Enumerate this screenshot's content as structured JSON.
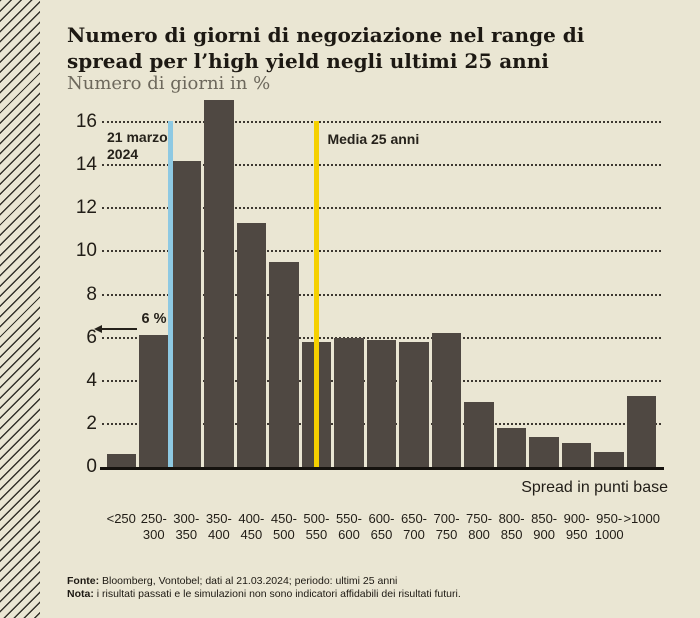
{
  "chart_data": {
    "type": "bar",
    "title": "Numero di giorni di negoziazione nel range di\nspread per l’high yield negli ultimi 25 anni",
    "subtitle": "Numero di giorni in %",
    "xlabel": "Spread in punti base",
    "ylabel": "Numero di giorni in %",
    "ylim": [
      0,
      17.2
    ],
    "yticks": [
      0,
      2,
      4,
      6,
      8,
      10,
      12,
      14,
      16
    ],
    "grid": "dotted-horizontal",
    "legend": "none",
    "bar_color": "#4f4842",
    "background_color": "#eae6d3",
    "categories": [
      "<250",
      "250-300",
      "300-350",
      "350-400",
      "400-450",
      "450-500",
      "500-550",
      "550-600",
      "600-650",
      "650-700",
      "700-750",
      "750-800",
      "800-850",
      "850-900",
      "900-950",
      "950-1000",
      ">1000"
    ],
    "values": [
      0.6,
      6.1,
      14.2,
      17.0,
      11.3,
      9.5,
      5.8,
      6.0,
      5.9,
      5.8,
      6.2,
      3.0,
      1.8,
      1.4,
      1.1,
      0.7,
      3.3
    ],
    "annotations": [
      {
        "type": "vline",
        "name": "current-date-line",
        "label": "21 marzo\n2024",
        "value_bp": 300,
        "color": "#8ec9e2",
        "label_side": "left"
      },
      {
        "type": "vline",
        "name": "average-line",
        "label": "Media 25 anni",
        "value_bp": 525,
        "color": "#f5d000",
        "label_side": "right"
      },
      {
        "type": "arrow-left",
        "name": "six-percent-annotation",
        "label": "6 %",
        "y": 6.4
      }
    ]
  },
  "footer": {
    "fonte_label": "Fonte:",
    "fonte_text": " Bloomberg, Vontobel; dati al 21.03.2024; periodo: ultimi 25 anni",
    "nota_label": "Nota:",
    "nota_text": " i risultati passati e le simulazioni non sono indicatori affidabili dei risultati futuri."
  }
}
